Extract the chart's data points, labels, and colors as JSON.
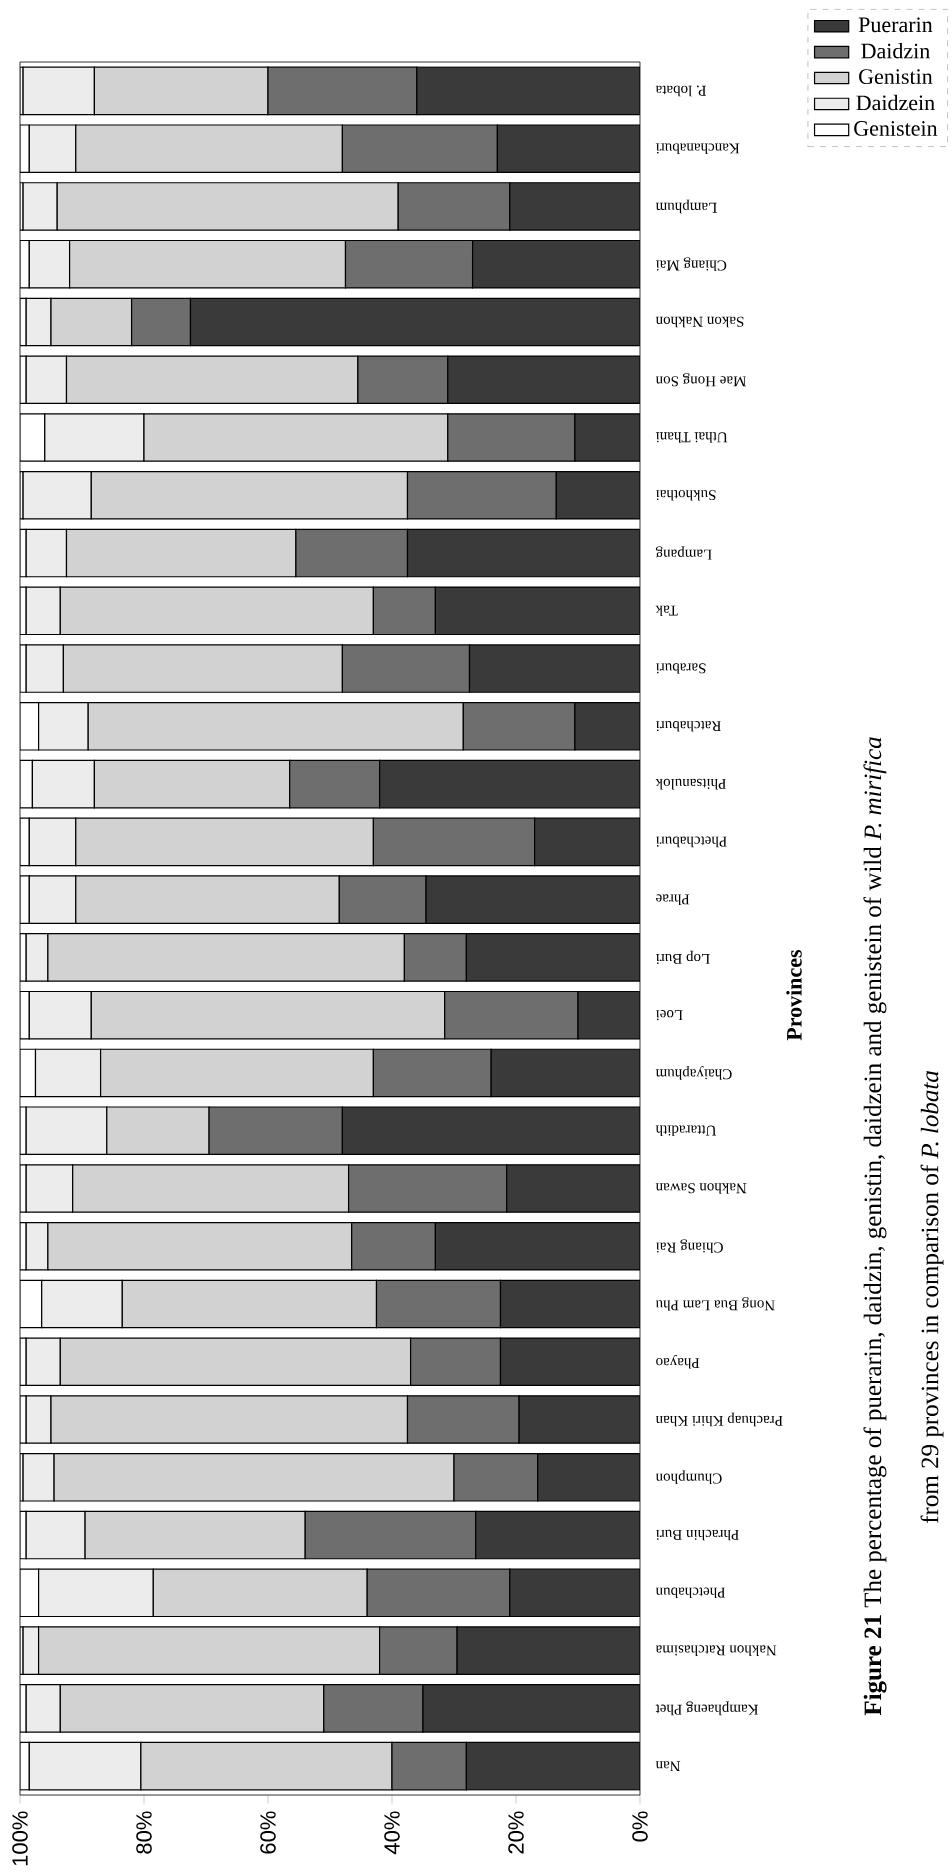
{
  "chart_data": {
    "type": "bar",
    "orientation": "horizontal",
    "stacked": true,
    "title": "**Figure 21** The percentage of puerarin, daidzin, genistin, daidzein and genistein of wild *P. mirifica*",
    "subtitle": "from 29 provinces in comparison of *P. lobata*",
    "ylabel": "Provinces",
    "categories": [
      "P. lobata",
      "Kanchanaburi",
      "Lamphum",
      "Chiang Mai",
      "Sakon Nakhon",
      "Mae Hong Son",
      "Uthai Thani",
      "Sukhothai",
      "Lampang",
      "Tak",
      "Saraburi",
      "Ratchaburi",
      "Phitsanulok",
      "Phetchaburi",
      "Phrae",
      "Lop Buri",
      "Loei",
      "Chaiyaphum",
      "Uttaradith",
      "Nakhon Sawan",
      "Chiang Rai",
      "Nong Bua Lam Phu",
      "Phayao",
      "Prachuap Khiri Khan",
      "Chumphon",
      "Phrachin Buri",
      "Phetchabun",
      "Nakhon Ratchasima",
      "Kamphaeng Phet",
      "Nan"
    ],
    "series": [
      {
        "name": "Puerarin",
        "color": "#3a3a3a",
        "values": [
          36,
          23,
          21,
          27,
          72.5,
          31,
          10.5,
          13.5,
          37.5,
          33,
          27.5,
          10.5,
          42,
          17,
          34.5,
          28,
          10,
          24,
          48,
          21.5,
          33,
          22.5,
          22.5,
          19.5,
          16.5,
          26.5,
          21,
          29.5,
          35,
          28
        ]
      },
      {
        "name": "Daidzin",
        "color": "#6e6e6e",
        "values": [
          24,
          25,
          18,
          20.5,
          9.5,
          14.5,
          20.5,
          24,
          18,
          10,
          20.5,
          18,
          14.5,
          26,
          14,
          10,
          21.5,
          19,
          21.5,
          25.5,
          13.5,
          20,
          14.5,
          18,
          13.5,
          27.5,
          23,
          12.5,
          16,
          12
        ]
      },
      {
        "name": "Genistin",
        "color": "#d2d2d2",
        "values": [
          28,
          43,
          55,
          44.5,
          13,
          47,
          49,
          51,
          37,
          50.5,
          45,
          60.5,
          31.5,
          48,
          42.5,
          57.5,
          57,
          44,
          16.5,
          44.5,
          49,
          41,
          56.5,
          57.5,
          64.5,
          35.5,
          34.5,
          55,
          42.5,
          40.5
        ]
      },
      {
        "name": "Daidzein",
        "color": "#ececec",
        "values": [
          11.5,
          7.5,
          5.5,
          6.5,
          4,
          6.5,
          16,
          11,
          6.5,
          5.5,
          6,
          8,
          10,
          7.5,
          7.5,
          3.5,
          10,
          10.5,
          13,
          7.5,
          3.5,
          13,
          5.5,
          4,
          5,
          9.5,
          18.5,
          2.5,
          5.5,
          18
        ]
      },
      {
        "name": "Genistein",
        "color": "#ffffff",
        "values": [
          0.5,
          1.5,
          0.5,
          1.5,
          1,
          1,
          4,
          0.5,
          1,
          1,
          1,
          3,
          2,
          1.5,
          1.5,
          1,
          1.5,
          2.5,
          1,
          1,
          1,
          3.5,
          1,
          1,
          0.5,
          1,
          3,
          0.5,
          1,
          1.5
        ]
      }
    ],
    "xlim": [
      100,
      0
    ],
    "xticks": [
      {
        "value": 0,
        "label": "0%"
      },
      {
        "value": 20,
        "label": "20%"
      },
      {
        "value": 40,
        "label": "40%"
      },
      {
        "value": 60,
        "label": "60%"
      },
      {
        "value": 80,
        "label": "80%"
      },
      {
        "value": 100,
        "label": "100%"
      }
    ],
    "legend": "top right"
  }
}
